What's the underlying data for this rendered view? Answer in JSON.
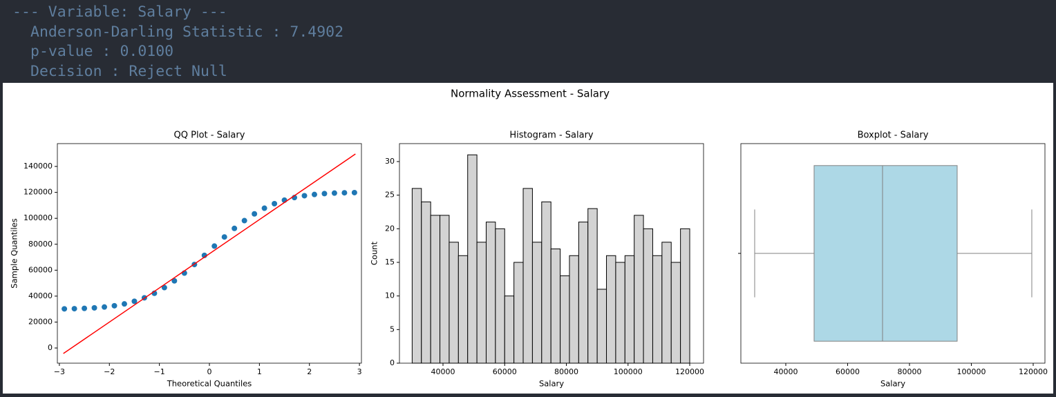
{
  "console": {
    "lines": [
      "--- Variable: Salary ---",
      "Anderson-Darling Statistic : 7.4902",
      "p-value : 0.0100",
      "Decision : Reject Null"
    ]
  },
  "figure": {
    "title": "Normality Assessment - Salary"
  },
  "chart_data": [
    {
      "type": "scatter",
      "title": "QQ Plot - Salary",
      "x_label": "Theoretical Quantiles",
      "y_label": "Sample Quantiles",
      "color": "#1f77b4",
      "x": [
        -2.9,
        -2.7,
        -2.5,
        -2.3,
        -2.1,
        -1.9,
        -1.7,
        -1.5,
        -1.3,
        -1.1,
        -0.9,
        -0.7,
        -0.5,
        -0.3,
        -0.1,
        0.1,
        0.3,
        0.5,
        0.7,
        0.9,
        1.1,
        1.3,
        1.5,
        1.7,
        1.9,
        2.1,
        2.3,
        2.5,
        2.7,
        2.9
      ],
      "y": [
        30170,
        30310,
        30560,
        30960,
        31610,
        32580,
        34010,
        36010,
        38710,
        42210,
        46570,
        51780,
        57770,
        64390,
        71420,
        78580,
        85610,
        92230,
        98220,
        103430,
        107790,
        111290,
        113990,
        115990,
        117420,
        118390,
        119040,
        119440,
        119690,
        119830
      ],
      "fit_line": {
        "x": [
          -2.92,
          2.92
        ],
        "y": [
          -4260,
          149600
        ],
        "color": "#ff0000"
      },
      "xlim": [
        -3.04,
        3.04
      ],
      "ylim": [
        -11700,
        157600
      ],
      "xticks": [
        {
          "value": -3,
          "label": "−3"
        },
        {
          "value": -2,
          "label": "−2"
        },
        {
          "value": -1,
          "label": "−1"
        },
        0,
        1,
        2,
        3
      ],
      "yticks": [
        0,
        20000,
        40000,
        60000,
        80000,
        100000,
        120000,
        140000
      ]
    },
    {
      "type": "histogram",
      "title": "Histogram - Salary",
      "x_label": "Salary",
      "y_label": "Count",
      "color": "#d3d3d3",
      "edgecolor": "#000000",
      "bins": [
        30000,
        33000,
        36000,
        39000,
        42000,
        45000,
        48000,
        51000,
        54000,
        57000,
        60000,
        63000,
        66000,
        69000,
        72000,
        75000,
        78000,
        81000,
        84000,
        87000,
        90000,
        93000,
        96000,
        99000,
        102000,
        105000,
        108000,
        111000,
        114000,
        117000,
        120000
      ],
      "values": [
        26,
        24,
        22,
        22,
        18,
        16,
        31,
        18,
        21,
        20,
        10,
        15,
        26,
        18,
        24,
        17,
        13,
        16,
        21,
        23,
        11,
        16,
        15,
        16,
        22,
        20,
        16,
        18,
        15,
        20
      ],
      "xlim": [
        25880,
        124480
      ],
      "ylim": [
        0,
        32.67
      ],
      "xticks": [
        40000,
        60000,
        80000,
        100000,
        120000
      ],
      "yticks": [
        0,
        5,
        10,
        15,
        20,
        25,
        30
      ]
    },
    {
      "type": "box",
      "title": "Boxplot - Salary",
      "x_label": "Salary",
      "color": "#add8e6",
      "edgecolor": "#808080",
      "values": {
        "whisker_low": 29940,
        "q1": 49160,
        "median": 71285,
        "q3": 95420,
        "whisker_high": 119550
      },
      "xlim": [
        25475,
        123800
      ],
      "xticks": [
        40000,
        60000,
        80000,
        100000,
        120000
      ]
    }
  ]
}
